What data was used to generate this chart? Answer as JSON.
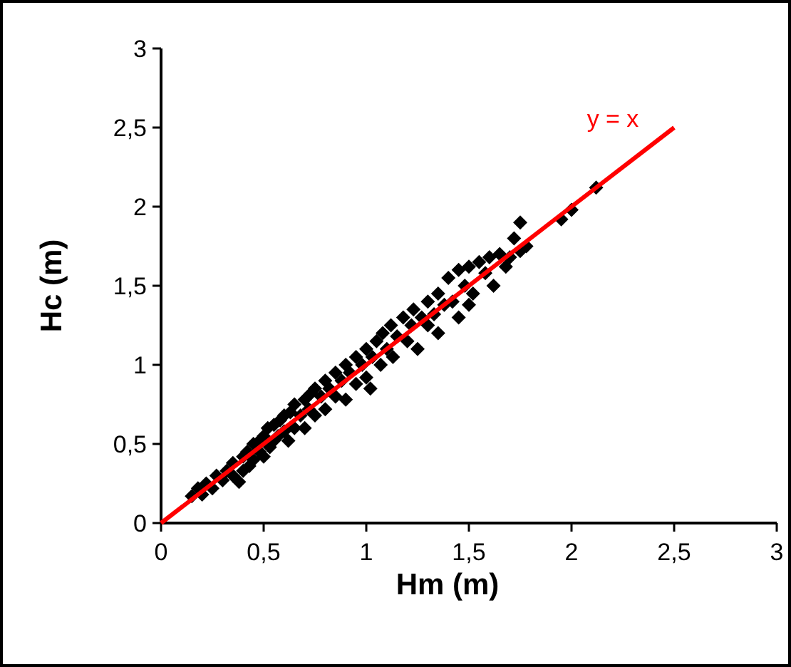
{
  "chart_data": {
    "type": "scatter",
    "xlabel": "Hm (m)",
    "ylabel": "Hc (m)",
    "xlim": [
      0,
      3
    ],
    "ylim": [
      0,
      3
    ],
    "xticks": [
      0,
      {
        "value": 0.5,
        "label": "0,5"
      },
      1,
      {
        "value": 1.5,
        "label": "1,5"
      },
      2,
      {
        "value": 2.5,
        "label": "2,5"
      },
      3
    ],
    "yticks": [
      0,
      {
        "value": 0.5,
        "label": "0,5"
      },
      1,
      {
        "value": 1.5,
        "label": "1,5"
      },
      2,
      {
        "value": 2.5,
        "label": "2,5"
      },
      3
    ],
    "grid": false,
    "annotations": [
      "y = x"
    ],
    "series": [
      {
        "color": "#000000",
        "marker": "diamond",
        "x": [
          0.15,
          0.18,
          0.2,
          0.22,
          0.25,
          0.27,
          0.3,
          0.32,
          0.35,
          0.35,
          0.38,
          0.4,
          0.4,
          0.42,
          0.43,
          0.45,
          0.45,
          0.48,
          0.48,
          0.5,
          0.5,
          0.52,
          0.53,
          0.55,
          0.55,
          0.57,
          0.58,
          0.6,
          0.6,
          0.62,
          0.63,
          0.65,
          0.65,
          0.68,
          0.7,
          0.7,
          0.72,
          0.73,
          0.75,
          0.75,
          0.78,
          0.8,
          0.8,
          0.82,
          0.85,
          0.85,
          0.88,
          0.9,
          0.9,
          0.92,
          0.95,
          0.95,
          0.98,
          1.0,
          1.0,
          1.02,
          1.03,
          1.05,
          1.07,
          1.08,
          1.1,
          1.12,
          1.13,
          1.15,
          1.18,
          1.2,
          1.22,
          1.23,
          1.25,
          1.27,
          1.3,
          1.3,
          1.33,
          1.35,
          1.35,
          1.38,
          1.4,
          1.42,
          1.45,
          1.45,
          1.48,
          1.5,
          1.5,
          1.52,
          1.55,
          1.58,
          1.6,
          1.62,
          1.65,
          1.68,
          1.7,
          1.72,
          1.75,
          1.75,
          1.78,
          1.95,
          2.0,
          2.12
        ],
        "values": [
          0.17,
          0.22,
          0.18,
          0.25,
          0.22,
          0.3,
          0.27,
          0.33,
          0.3,
          0.38,
          0.26,
          0.42,
          0.33,
          0.45,
          0.36,
          0.5,
          0.4,
          0.52,
          0.45,
          0.55,
          0.42,
          0.6,
          0.48,
          0.62,
          0.52,
          0.55,
          0.65,
          0.58,
          0.68,
          0.52,
          0.7,
          0.6,
          0.75,
          0.68,
          0.78,
          0.6,
          0.72,
          0.82,
          0.68,
          0.85,
          0.8,
          0.72,
          0.9,
          0.85,
          0.8,
          0.95,
          0.9,
          0.78,
          1.0,
          0.95,
          0.88,
          1.05,
          1.0,
          1.1,
          0.92,
          0.85,
          1.05,
          1.15,
          1.0,
          1.2,
          1.1,
          1.25,
          1.05,
          1.18,
          1.3,
          1.15,
          1.25,
          1.35,
          1.1,
          1.3,
          1.4,
          1.25,
          1.32,
          1.45,
          1.2,
          1.38,
          1.55,
          1.4,
          1.6,
          1.3,
          1.5,
          1.62,
          1.38,
          1.45,
          1.65,
          1.58,
          1.68,
          1.5,
          1.7,
          1.62,
          1.68,
          1.8,
          1.9,
          1.72,
          1.75,
          1.92,
          1.98,
          2.12
        ]
      },
      {
        "type": "line",
        "color": "#ff0000",
        "marker": "none",
        "line_style": "solid",
        "x": [
          0,
          2.5
        ],
        "values": [
          0,
          2.5
        ]
      }
    ]
  }
}
